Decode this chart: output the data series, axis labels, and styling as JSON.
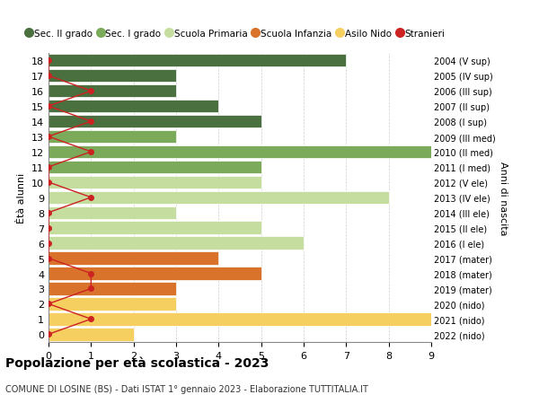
{
  "ages": [
    18,
    17,
    16,
    15,
    14,
    13,
    12,
    11,
    10,
    9,
    8,
    7,
    6,
    5,
    4,
    3,
    2,
    1,
    0
  ],
  "years": [
    "2004 (V sup)",
    "2005 (IV sup)",
    "2006 (III sup)",
    "2007 (II sup)",
    "2008 (I sup)",
    "2009 (III med)",
    "2010 (II med)",
    "2011 (I med)",
    "2012 (V ele)",
    "2013 (IV ele)",
    "2014 (III ele)",
    "2015 (II ele)",
    "2016 (I ele)",
    "2017 (mater)",
    "2018 (mater)",
    "2019 (mater)",
    "2020 (nido)",
    "2021 (nido)",
    "2022 (nido)"
  ],
  "values": [
    7,
    3,
    3,
    4,
    5,
    3,
    9,
    5,
    5,
    8,
    3,
    5,
    6,
    4,
    5,
    3,
    3,
    9,
    2
  ],
  "bar_colors": [
    "#4a7040",
    "#4a7040",
    "#4a7040",
    "#4a7040",
    "#4a7040",
    "#7aaa5a",
    "#7aaa5a",
    "#7aaa5a",
    "#c5dea0",
    "#c5dea0",
    "#c5dea0",
    "#c5dea0",
    "#c5dea0",
    "#d9722a",
    "#d9722a",
    "#d9722a",
    "#f5d060",
    "#f5d060",
    "#f5d060"
  ],
  "stranieri_x": [
    0,
    0,
    1,
    0,
    1,
    0,
    1,
    0,
    0,
    1,
    0,
    0,
    0,
    0,
    1,
    1,
    0,
    1,
    0
  ],
  "legend_labels": [
    "Sec. II grado",
    "Sec. I grado",
    "Scuola Primaria",
    "Scuola Infanzia",
    "Asilo Nido",
    "Stranieri"
  ],
  "legend_colors": [
    "#4a7040",
    "#7aaa5a",
    "#c5dea0",
    "#d9722a",
    "#f5d060",
    "#cc2222"
  ],
  "title": "Popolazione per età scolastica - 2023",
  "subtitle": "COMUNE DI LOSINE (BS) - Dati ISTAT 1° gennaio 2023 - Elaborazione TUTTITALIA.IT",
  "xlabel_right": "Anni di nascita",
  "ylabel": "Ètà alunni",
  "xlim": [
    0,
    9
  ],
  "xticks": [
    0,
    1,
    2,
    3,
    4,
    5,
    6,
    7,
    8,
    9
  ],
  "stranieri_color": "#cc2222",
  "grid_color": "#cccccc",
  "bg_color": "#ffffff"
}
